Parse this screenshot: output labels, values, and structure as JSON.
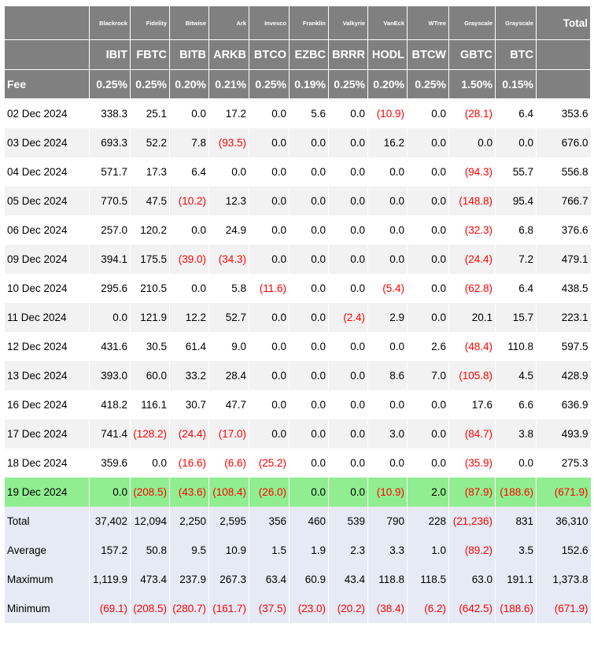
{
  "columns": [
    {
      "issuer": "Blackrock",
      "ticker": "IBIT",
      "fee": "0.25%"
    },
    {
      "issuer": "Fidelity",
      "ticker": "FBTC",
      "fee": "0.25%"
    },
    {
      "issuer": "Bitwise",
      "ticker": "BITB",
      "fee": "0.20%"
    },
    {
      "issuer": "Ark",
      "ticker": "ARKB",
      "fee": "0.21%"
    },
    {
      "issuer": "Invesco",
      "ticker": "BTCO",
      "fee": "0.25%"
    },
    {
      "issuer": "Franklin",
      "ticker": "EZBC",
      "fee": "0.19%"
    },
    {
      "issuer": "Valkyrie",
      "ticker": "BRRR",
      "fee": "0.25%"
    },
    {
      "issuer": "VanEck",
      "ticker": "HODL",
      "fee": "0.20%"
    },
    {
      "issuer": "WTree",
      "ticker": "BTCW",
      "fee": "0.25%"
    },
    {
      "issuer": "Grayscale",
      "ticker": "GBTC",
      "fee": "1.50%"
    },
    {
      "issuer": "Grayscale",
      "ticker": "BTC",
      "fee": "0.15%"
    }
  ],
  "total_label": "Total",
  "fee_label": "Fee",
  "rows": [
    {
      "date": "02 Dec 2024",
      "values": [
        "338.3",
        "25.1",
        "0.0",
        "17.2",
        "0.0",
        "5.6",
        "0.0",
        "(10.9)",
        "0.0",
        "(28.1)",
        "6.4"
      ],
      "total": "353.6"
    },
    {
      "date": "03 Dec 2024",
      "values": [
        "693.3",
        "52.2",
        "7.8",
        "(93.5)",
        "0.0",
        "0.0",
        "0.0",
        "16.2",
        "0.0",
        "0.0",
        "0.0"
      ],
      "total": "676.0"
    },
    {
      "date": "04 Dec 2024",
      "values": [
        "571.7",
        "17.3",
        "6.4",
        "0.0",
        "0.0",
        "0.0",
        "0.0",
        "0.0",
        "0.0",
        "(94.3)",
        "55.7"
      ],
      "total": "556.8"
    },
    {
      "date": "05 Dec 2024",
      "values": [
        "770.5",
        "47.5",
        "(10.2)",
        "12.3",
        "0.0",
        "0.0",
        "0.0",
        "0.0",
        "0.0",
        "(148.8)",
        "95.4"
      ],
      "total": "766.7"
    },
    {
      "date": "06 Dec 2024",
      "values": [
        "257.0",
        "120.2",
        "0.0",
        "24.9",
        "0.0",
        "0.0",
        "0.0",
        "0.0",
        "0.0",
        "(32.3)",
        "6.8"
      ],
      "total": "376.6"
    },
    {
      "date": "09 Dec 2024",
      "values": [
        "394.1",
        "175.5",
        "(39.0)",
        "(34.3)",
        "0.0",
        "0.0",
        "0.0",
        "0.0",
        "0.0",
        "(24.4)",
        "7.2"
      ],
      "total": "479.1"
    },
    {
      "date": "10 Dec 2024",
      "values": [
        "295.6",
        "210.5",
        "0.0",
        "5.8",
        "(11.6)",
        "0.0",
        "0.0",
        "(5.4)",
        "0.0",
        "(62.8)",
        "6.4"
      ],
      "total": "438.5"
    },
    {
      "date": "11 Dec 2024",
      "values": [
        "0.0",
        "121.9",
        "12.2",
        "52.7",
        "0.0",
        "0.0",
        "(2.4)",
        "2.9",
        "0.0",
        "20.1",
        "15.7"
      ],
      "total": "223.1"
    },
    {
      "date": "12 Dec 2024",
      "values": [
        "431.6",
        "30.5",
        "61.4",
        "9.0",
        "0.0",
        "0.0",
        "0.0",
        "0.0",
        "2.6",
        "(48.4)",
        "110.8"
      ],
      "total": "597.5"
    },
    {
      "date": "13 Dec 2024",
      "values": [
        "393.0",
        "60.0",
        "33.2",
        "28.4",
        "0.0",
        "0.0",
        "0.0",
        "8.6",
        "7.0",
        "(105.8)",
        "4.5"
      ],
      "total": "428.9"
    },
    {
      "date": "16 Dec 2024",
      "values": [
        "418.2",
        "116.1",
        "30.7",
        "47.7",
        "0.0",
        "0.0",
        "0.0",
        "0.0",
        "0.0",
        "17.6",
        "6.6"
      ],
      "total": "636.9"
    },
    {
      "date": "17 Dec 2024",
      "values": [
        "741.4",
        "(128.2)",
        "(24.4)",
        "(17.0)",
        "0.0",
        "0.0",
        "0.0",
        "3.0",
        "0.0",
        "(84.7)",
        "3.8"
      ],
      "total": "493.9"
    },
    {
      "date": "18 Dec 2024",
      "values": [
        "359.6",
        "0.0",
        "(16.6)",
        "(6.6)",
        "(25.2)",
        "0.0",
        "0.0",
        "0.0",
        "0.0",
        "(35.9)",
        "0.0"
      ],
      "total": "275.3"
    },
    {
      "date": "19 Dec 2024",
      "values": [
        "0.0",
        "(208.5)",
        "(43.6)",
        "(108.4)",
        "(26.0)",
        "0.0",
        "0.0",
        "(10.9)",
        "2.0",
        "(87.9)",
        "(188.6)"
      ],
      "total": "(671.9)",
      "highlight": true
    }
  ],
  "summary": [
    {
      "label": "Total",
      "values": [
        "37,402",
        "12,094",
        "2,250",
        "2,595",
        "356",
        "460",
        "539",
        "790",
        "228",
        "(21,236)",
        "831"
      ],
      "total": "36,310"
    },
    {
      "label": "Average",
      "values": [
        "157.2",
        "50.8",
        "9.5",
        "10.9",
        "1.5",
        "1.9",
        "2.3",
        "3.3",
        "1.0",
        "(89.2)",
        "3.5"
      ],
      "total": "152.6"
    },
    {
      "label": "Maximum",
      "values": [
        "1,119.9",
        "473.4",
        "237.9",
        "267.3",
        "63.4",
        "60.9",
        "43.4",
        "118.8",
        "118.5",
        "63.0",
        "191.1"
      ],
      "total": "1,373.8"
    },
    {
      "label": "Minimum",
      "values": [
        "(69.1)",
        "(208.5)",
        "(280.7)",
        "(161.7)",
        "(37.5)",
        "(23.0)",
        "(20.2)",
        "(38.4)",
        "(6.2)",
        "(642.5)",
        "(188.6)"
      ],
      "total": "(671.9)"
    }
  ],
  "colors": {
    "header_bg": "#808080",
    "negative": "#ff0000",
    "highlight_row": "#90ee90",
    "summary_row": "#e6eaf4",
    "stripe_row": "#f2f2f2"
  }
}
